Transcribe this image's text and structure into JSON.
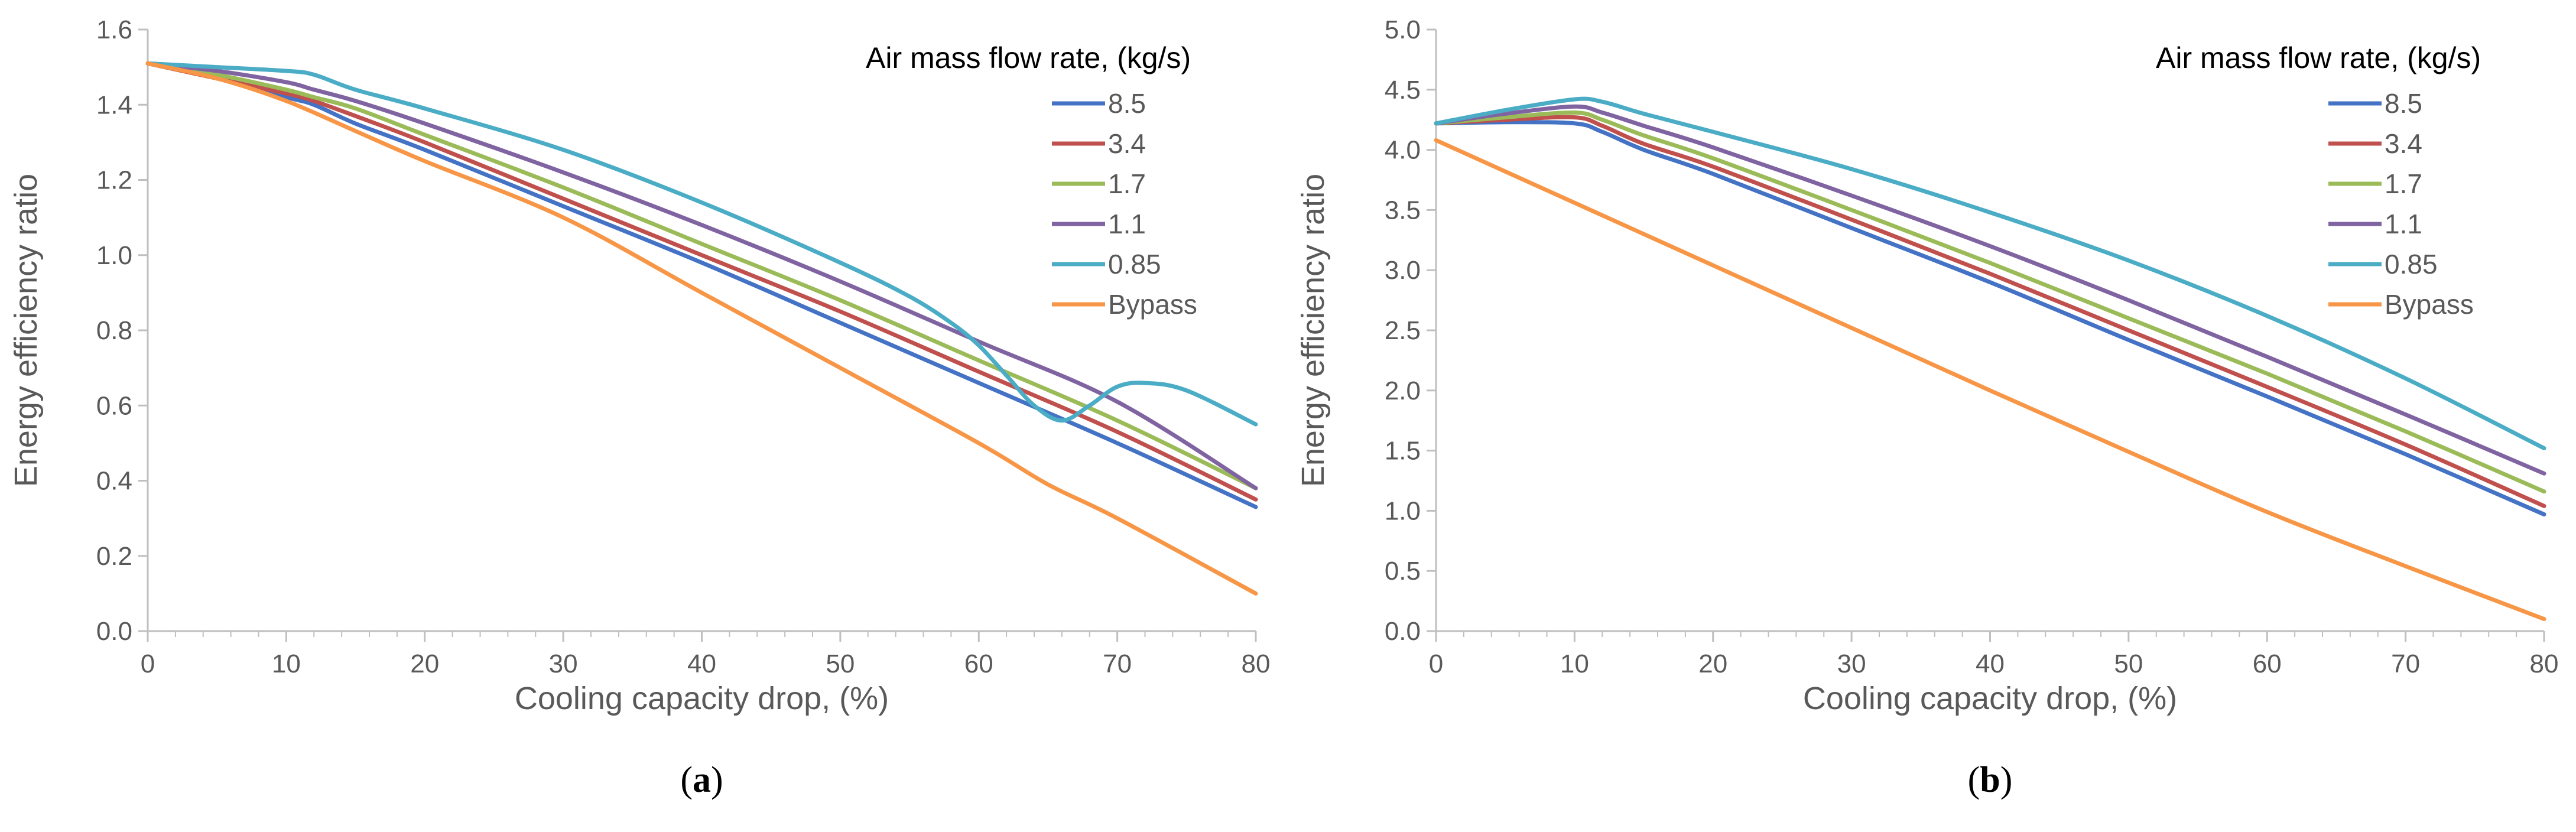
{
  "chart_data": [
    {
      "type": "line",
      "panel_label": "a",
      "xlabel": "Cooling capacity drop, (%)",
      "ylabel": "Energy efficiency ratio",
      "xlim": [
        0,
        80
      ],
      "ylim": [
        0,
        1.6
      ],
      "xticks": [
        "0",
        "10",
        "20",
        "30",
        "40",
        "50",
        "60",
        "70",
        "80"
      ],
      "yticks": [
        "0.0",
        "0.2",
        "0.4",
        "0.6",
        "0.8",
        "1.0",
        "1.2",
        "1.4",
        "1.6"
      ],
      "legend_title": "Air mass flow rate, (kg/s)",
      "legend_position": "top-right",
      "grid": false,
      "series": [
        {
          "name": "8.5",
          "color": "#4472c4",
          "x": [
            0,
            5,
            10,
            12,
            15,
            20,
            30,
            40,
            50,
            60,
            70,
            80
          ],
          "y": [
            1.51,
            1.47,
            1.42,
            1.4,
            1.35,
            1.28,
            1.13,
            0.98,
            0.82,
            0.66,
            0.5,
            0.33
          ]
        },
        {
          "name": "3.4",
          "color": "#c0504d",
          "x": [
            0,
            5,
            10,
            12,
            15,
            20,
            30,
            40,
            50,
            60,
            70,
            80
          ],
          "y": [
            1.51,
            1.47,
            1.43,
            1.41,
            1.37,
            1.3,
            1.15,
            1.0,
            0.85,
            0.69,
            0.53,
            0.35
          ]
        },
        {
          "name": "1.7",
          "color": "#9bbb59",
          "x": [
            0,
            5,
            10,
            12,
            15,
            20,
            30,
            40,
            50,
            60,
            70,
            80
          ],
          "y": [
            1.51,
            1.48,
            1.44,
            1.42,
            1.39,
            1.32,
            1.18,
            1.03,
            0.88,
            0.72,
            0.56,
            0.38
          ]
        },
        {
          "name": "1.1",
          "color": "#8064a2",
          "x": [
            0,
            5,
            10,
            12,
            15,
            20,
            30,
            40,
            50,
            60,
            70,
            80
          ],
          "y": [
            1.51,
            1.49,
            1.46,
            1.44,
            1.41,
            1.35,
            1.22,
            1.08,
            0.93,
            0.77,
            0.61,
            0.38
          ]
        },
        {
          "name": "0.85",
          "color": "#4bacc6",
          "x": [
            0,
            5,
            10,
            12,
            15,
            20,
            30,
            40,
            50,
            55,
            58,
            60,
            62,
            64,
            66,
            68,
            70,
            72,
            75,
            80
          ],
          "y": [
            1.51,
            1.5,
            1.49,
            1.48,
            1.44,
            1.39,
            1.28,
            1.14,
            0.98,
            0.89,
            0.82,
            0.76,
            0.68,
            0.6,
            0.56,
            0.6,
            0.65,
            0.66,
            0.64,
            0.55
          ]
        },
        {
          "name": "Bypass",
          "color": "#f79646",
          "x": [
            0,
            5,
            10,
            15,
            20,
            30,
            40,
            50,
            60,
            65,
            70,
            80
          ],
          "y": [
            1.51,
            1.47,
            1.41,
            1.33,
            1.25,
            1.1,
            0.9,
            0.7,
            0.5,
            0.39,
            0.3,
            0.1
          ]
        }
      ]
    },
    {
      "type": "line",
      "panel_label": "b",
      "xlabel": "Cooling capacity drop, (%)",
      "ylabel": "Energy efficiency ratio",
      "xlim": [
        0,
        80
      ],
      "ylim": [
        0,
        5.0
      ],
      "xticks": [
        "0",
        "10",
        "20",
        "30",
        "40",
        "50",
        "60",
        "70",
        "80"
      ],
      "yticks": [
        "0.0",
        "0.5",
        "1.0",
        "1.5",
        "2.0",
        "2.5",
        "3.0",
        "3.5",
        "4.0",
        "4.5",
        "5.0"
      ],
      "legend_title": "Air mass flow rate, (kg/s)",
      "legend_position": "top-right",
      "grid": false,
      "series": [
        {
          "name": "8.5",
          "color": "#4472c4",
          "x": [
            0,
            5,
            10,
            12,
            15,
            20,
            30,
            40,
            50,
            60,
            70,
            80
          ],
          "y": [
            4.22,
            4.23,
            4.22,
            4.15,
            4.0,
            3.8,
            3.35,
            2.9,
            2.42,
            1.95,
            1.47,
            0.97
          ]
        },
        {
          "name": "3.4",
          "color": "#c0504d",
          "x": [
            0,
            5,
            10,
            12,
            15,
            20,
            30,
            40,
            50,
            60,
            70,
            80
          ],
          "y": [
            4.22,
            4.25,
            4.27,
            4.2,
            4.05,
            3.86,
            3.42,
            2.97,
            2.5,
            2.03,
            1.55,
            1.04
          ]
        },
        {
          "name": "1.7",
          "color": "#9bbb59",
          "x": [
            0,
            5,
            10,
            12,
            15,
            20,
            30,
            40,
            50,
            60,
            70,
            80
          ],
          "y": [
            4.22,
            4.27,
            4.31,
            4.25,
            4.12,
            3.93,
            3.5,
            3.06,
            2.6,
            2.14,
            1.66,
            1.16
          ]
        },
        {
          "name": "1.1",
          "color": "#8064a2",
          "x": [
            0,
            5,
            10,
            12,
            15,
            20,
            30,
            40,
            50,
            60,
            70,
            80
          ],
          "y": [
            4.22,
            4.3,
            4.36,
            4.31,
            4.2,
            4.02,
            3.62,
            3.2,
            2.75,
            2.28,
            1.8,
            1.31
          ]
        },
        {
          "name": "0.85",
          "color": "#4bacc6",
          "x": [
            0,
            5,
            10,
            12,
            15,
            20,
            30,
            40,
            50,
            60,
            70,
            80
          ],
          "y": [
            4.22,
            4.33,
            4.42,
            4.4,
            4.3,
            4.15,
            3.84,
            3.48,
            3.08,
            2.62,
            2.1,
            1.52
          ]
        },
        {
          "name": "Bypass",
          "color": "#f79646",
          "x": [
            0,
            10,
            20,
            30,
            40,
            50,
            60,
            70,
            80
          ],
          "y": [
            4.08,
            3.56,
            3.04,
            2.52,
            2.0,
            1.49,
            0.99,
            0.54,
            0.1
          ]
        }
      ]
    }
  ]
}
